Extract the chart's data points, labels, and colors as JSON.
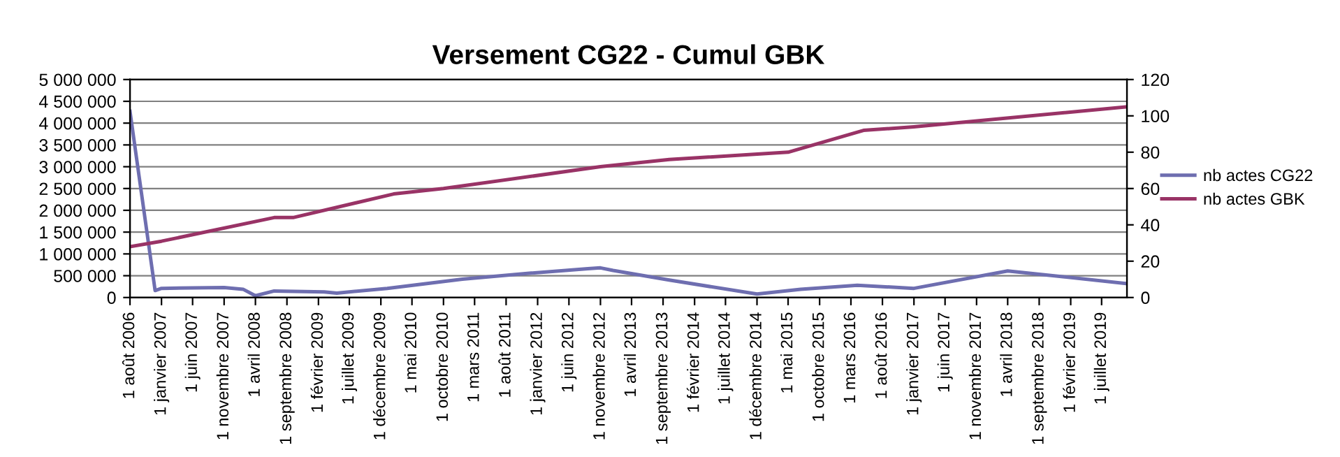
{
  "chart_data": {
    "type": "line",
    "title": "Versement CG22 - Cumul GBK",
    "series": [
      {
        "name": "nb actes CG22",
        "color": "#6e6eb0",
        "axis": "y",
        "x": [
          "2006-08",
          "2006-12",
          "2007-01",
          "2007-11",
          "2008-02",
          "2008-04",
          "2008-07",
          "2009-03",
          "2009-05",
          "2010-01",
          "2011-01",
          "2011-12",
          "2012-09",
          "2012-11",
          "2013-01",
          "2013-10",
          "2014-12",
          "2015-07",
          "2016-04",
          "2017-01",
          "2018-04",
          "2019-11"
        ],
        "values": [
          4270000,
          160000,
          210000,
          230000,
          190000,
          40000,
          150000,
          130000,
          100000,
          210000,
          420000,
          560000,
          660000,
          680000,
          620000,
          400000,
          80000,
          190000,
          280000,
          210000,
          610000,
          320000
        ]
      },
      {
        "name": "nb actes GBK",
        "color": "#993366",
        "axis": "y2",
        "x": [
          "2006-08",
          "2007-01",
          "2008-07",
          "2008-10",
          "2010-02",
          "2010-10",
          "2012-11",
          "2013-10",
          "2015-05",
          "2016-05",
          "2017-01",
          "2019-11"
        ],
        "values": [
          28,
          31,
          44,
          44,
          57,
          60,
          72,
          76,
          80,
          92,
          94,
          105
        ]
      }
    ],
    "xlim": [
      "2006-08-01",
      "2019-11-01"
    ],
    "xticks": [
      {
        "value": "2006-08-01",
        "label": "1 août 2006"
      },
      {
        "value": "2007-01-01",
        "label": "1 janvier 2007"
      },
      {
        "value": "2007-06-01",
        "label": "1 juin 2007"
      },
      {
        "value": "2007-11-01",
        "label": "1 novembre 2007"
      },
      {
        "value": "2008-04-01",
        "label": "1 avril 2008"
      },
      {
        "value": "2008-09-01",
        "label": "1 septembre 2008"
      },
      {
        "value": "2009-02-01",
        "label": "1 février 2009"
      },
      {
        "value": "2009-07-01",
        "label": "1 juillet 2009"
      },
      {
        "value": "2009-12-01",
        "label": "1 décembre 2009"
      },
      {
        "value": "2010-05-01",
        "label": "1 mai 2010"
      },
      {
        "value": "2010-10-01",
        "label": "1 octobre 2010"
      },
      {
        "value": "2011-03-01",
        "label": "1 mars 2011"
      },
      {
        "value": "2011-08-01",
        "label": "1 août 2011"
      },
      {
        "value": "2012-01-01",
        "label": "1 janvier 2012"
      },
      {
        "value": "2012-06-01",
        "label": "1 juin 2012"
      },
      {
        "value": "2012-11-01",
        "label": "1 novembre 2012"
      },
      {
        "value": "2013-04-01",
        "label": "1 avril 2013"
      },
      {
        "value": "2013-09-01",
        "label": "1 septembre 2013"
      },
      {
        "value": "2014-02-01",
        "label": "1 février 2014"
      },
      {
        "value": "2014-07-01",
        "label": "1 juillet 2014"
      },
      {
        "value": "2014-12-01",
        "label": "1 décembre 2014"
      },
      {
        "value": "2015-05-01",
        "label": "1 mai 2015"
      },
      {
        "value": "2015-10-01",
        "label": "1 octobre 2015"
      },
      {
        "value": "2016-03-01",
        "label": "1 mars 2016"
      },
      {
        "value": "2016-08-01",
        "label": "1 août 2016"
      },
      {
        "value": "2017-01-01",
        "label": "1 janvier 2017"
      },
      {
        "value": "2017-06-01",
        "label": "1 juin 2017"
      },
      {
        "value": "2017-11-01",
        "label": "1 novembre 2017"
      },
      {
        "value": "2018-04-01",
        "label": "1 avril 2018"
      },
      {
        "value": "2018-09-01",
        "label": "1 septembre 2018"
      },
      {
        "value": "2019-02-01",
        "label": "1 février 2019"
      },
      {
        "value": "2019-07-01",
        "label": "1 juillet 2019"
      }
    ],
    "ylim": [
      0,
      5000000
    ],
    "yticks": [
      {
        "value": 0,
        "label": "0"
      },
      {
        "value": 500000,
        "label": "500 000"
      },
      {
        "value": 1000000,
        "label": "1 000 000"
      },
      {
        "value": 1500000,
        "label": "1 500 000"
      },
      {
        "value": 2000000,
        "label": "2 000 000"
      },
      {
        "value": 2500000,
        "label": "2 500 000"
      },
      {
        "value": 3000000,
        "label": "3 000 000"
      },
      {
        "value": 3500000,
        "label": "3 500 000"
      },
      {
        "value": 4000000,
        "label": "4 000 000"
      },
      {
        "value": 4500000,
        "label": "4 500 000"
      },
      {
        "value": 5000000,
        "label": "5 000 000"
      }
    ],
    "y2lim": [
      0,
      120
    ],
    "y2ticks": [
      0,
      20,
      40,
      60,
      80,
      100,
      120
    ],
    "grid": "y",
    "legend": "right",
    "marker": "none",
    "line_style": "solid"
  }
}
